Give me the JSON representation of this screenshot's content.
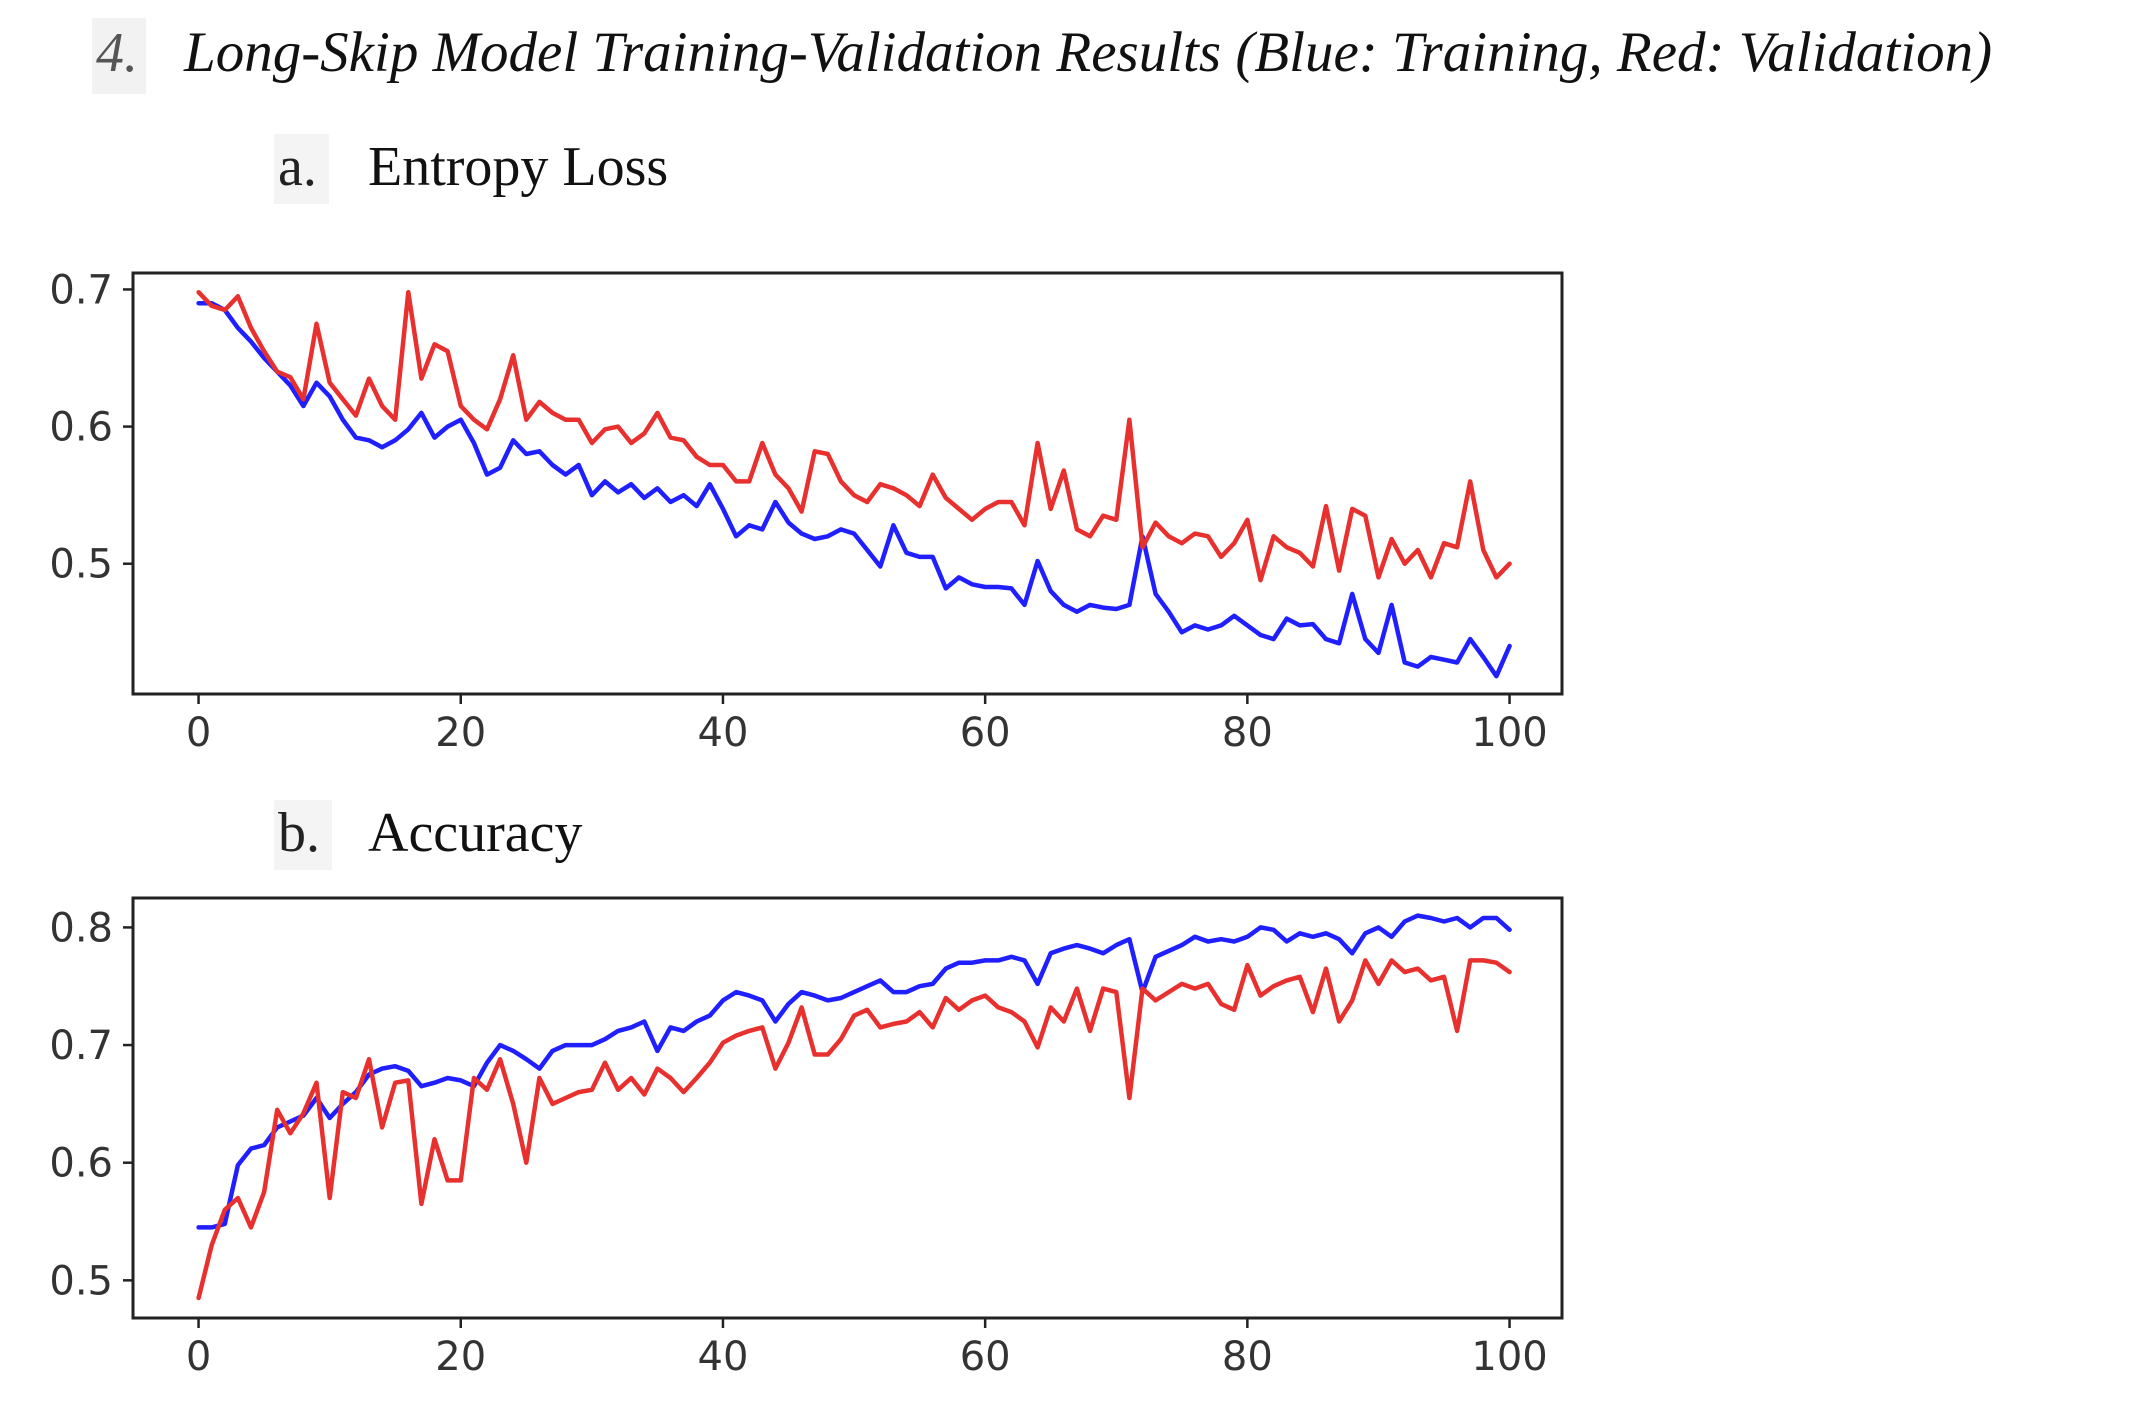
{
  "heading": {
    "number": "4.",
    "title": "Long-Skip Model Training-Validation Results (Blue: Training, Red: Validation)"
  },
  "sections": [
    {
      "letter": "a.",
      "title": "Entropy Loss"
    },
    {
      "letter": "b.",
      "title": "Accuracy"
    }
  ],
  "colors": {
    "training": "#1f1fff",
    "validation": "#e8312f",
    "axes": "#222222"
  },
  "chart_data": [
    {
      "type": "line",
      "title": "",
      "xlabel": "",
      "ylabel": "",
      "xlim": [
        -5,
        104
      ],
      "ylim": [
        0.405,
        0.712
      ],
      "xticks": [
        0,
        20,
        40,
        60,
        80,
        100
      ],
      "yticks": [
        0.5,
        0.6,
        0.7
      ],
      "xtick_labels": [
        "0",
        "20",
        "40",
        "60",
        "80",
        "100"
      ],
      "ytick_labels": [
        "0.5",
        "0.6",
        "0.7"
      ],
      "grid": false,
      "series": [
        {
          "color": "#1f1fff",
          "values": [
            0.69,
            0.69,
            0.685,
            0.672,
            0.662,
            0.65,
            0.64,
            0.63,
            0.615,
            0.632,
            0.622,
            0.605,
            0.592,
            0.59,
            0.585,
            0.59,
            0.598,
            0.61,
            0.592,
            0.6,
            0.605,
            0.588,
            0.565,
            0.57,
            0.59,
            0.58,
            0.582,
            0.572,
            0.565,
            0.572,
            0.55,
            0.56,
            0.552,
            0.558,
            0.548,
            0.555,
            0.545,
            0.55,
            0.542,
            0.558,
            0.54,
            0.52,
            0.528,
            0.525,
            0.545,
            0.53,
            0.522,
            0.518,
            0.52,
            0.525,
            0.522,
            0.51,
            0.498,
            0.528,
            0.508,
            0.505,
            0.505,
            0.482,
            0.49,
            0.485,
            0.483,
            0.483,
            0.482,
            0.47,
            0.502,
            0.48,
            0.47,
            0.465,
            0.47,
            0.468,
            0.467,
            0.47,
            0.52,
            0.478,
            0.465,
            0.45,
            0.455,
            0.452,
            0.455,
            0.462,
            0.455,
            0.448,
            0.445,
            0.46,
            0.455,
            0.456,
            0.445,
            0.442,
            0.478,
            0.445,
            0.435,
            0.47,
            0.428,
            0.425,
            0.432,
            0.43,
            0.428,
            0.445,
            0.432,
            0.418,
            0.44
          ]
        },
        {
          "color": "#e8312f",
          "values": [
            0.698,
            0.688,
            0.685,
            0.695,
            0.672,
            0.655,
            0.64,
            0.636,
            0.62,
            0.675,
            0.632,
            0.62,
            0.608,
            0.635,
            0.615,
            0.605,
            0.698,
            0.635,
            0.66,
            0.655,
            0.615,
            0.605,
            0.598,
            0.62,
            0.652,
            0.605,
            0.618,
            0.61,
            0.605,
            0.605,
            0.588,
            0.598,
            0.6,
            0.588,
            0.595,
            0.61,
            0.592,
            0.59,
            0.578,
            0.572,
            0.572,
            0.56,
            0.56,
            0.588,
            0.565,
            0.555,
            0.538,
            0.582,
            0.58,
            0.56,
            0.55,
            0.545,
            0.558,
            0.555,
            0.55,
            0.542,
            0.565,
            0.548,
            0.54,
            0.532,
            0.54,
            0.545,
            0.545,
            0.528,
            0.588,
            0.54,
            0.568,
            0.525,
            0.52,
            0.535,
            0.532,
            0.605,
            0.512,
            0.53,
            0.52,
            0.515,
            0.522,
            0.52,
            0.505,
            0.515,
            0.532,
            0.488,
            0.52,
            0.512,
            0.508,
            0.498,
            0.542,
            0.495,
            0.54,
            0.535,
            0.49,
            0.518,
            0.5,
            0.51,
            0.49,
            0.515,
            0.512,
            0.56,
            0.51,
            0.49,
            0.5
          ]
        }
      ]
    },
    {
      "type": "line",
      "title": "",
      "xlabel": "",
      "ylabel": "",
      "xlim": [
        -5,
        104
      ],
      "ylim": [
        0.468,
        0.825
      ],
      "xticks": [
        0,
        20,
        40,
        60,
        80,
        100
      ],
      "yticks": [
        0.5,
        0.6,
        0.7,
        0.8
      ],
      "xtick_labels": [
        "0",
        "20",
        "40",
        "60",
        "80",
        "100"
      ],
      "ytick_labels": [
        "0.5",
        "0.6",
        "0.7",
        "0.8"
      ],
      "grid": false,
      "series": [
        {
          "color": "#1f1fff",
          "values": [
            0.545,
            0.545,
            0.548,
            0.598,
            0.612,
            0.615,
            0.63,
            0.635,
            0.64,
            0.655,
            0.638,
            0.65,
            0.66,
            0.675,
            0.68,
            0.682,
            0.678,
            0.665,
            0.668,
            0.672,
            0.67,
            0.665,
            0.685,
            0.7,
            0.695,
            0.688,
            0.68,
            0.695,
            0.7,
            0.7,
            0.7,
            0.705,
            0.712,
            0.715,
            0.72,
            0.695,
            0.715,
            0.712,
            0.72,
            0.725,
            0.738,
            0.745,
            0.742,
            0.738,
            0.72,
            0.735,
            0.745,
            0.742,
            0.738,
            0.74,
            0.745,
            0.75,
            0.755,
            0.745,
            0.745,
            0.75,
            0.752,
            0.765,
            0.77,
            0.77,
            0.772,
            0.772,
            0.775,
            0.772,
            0.752,
            0.778,
            0.782,
            0.785,
            0.782,
            0.778,
            0.785,
            0.79,
            0.745,
            0.775,
            0.78,
            0.785,
            0.792,
            0.788,
            0.79,
            0.788,
            0.792,
            0.8,
            0.798,
            0.788,
            0.795,
            0.792,
            0.795,
            0.79,
            0.778,
            0.795,
            0.8,
            0.792,
            0.805,
            0.81,
            0.808,
            0.805,
            0.808,
            0.8,
            0.808,
            0.808,
            0.798
          ]
        },
        {
          "color": "#e8312f",
          "values": [
            0.485,
            0.53,
            0.56,
            0.57,
            0.545,
            0.575,
            0.645,
            0.625,
            0.642,
            0.668,
            0.57,
            0.66,
            0.655,
            0.688,
            0.63,
            0.668,
            0.67,
            0.565,
            0.62,
            0.585,
            0.585,
            0.672,
            0.662,
            0.688,
            0.65,
            0.6,
            0.672,
            0.65,
            0.655,
            0.66,
            0.662,
            0.685,
            0.662,
            0.672,
            0.658,
            0.68,
            0.672,
            0.66,
            0.672,
            0.685,
            0.702,
            0.708,
            0.712,
            0.715,
            0.68,
            0.702,
            0.732,
            0.692,
            0.692,
            0.705,
            0.725,
            0.73,
            0.715,
            0.718,
            0.72,
            0.728,
            0.715,
            0.74,
            0.73,
            0.738,
            0.742,
            0.732,
            0.728,
            0.72,
            0.698,
            0.732,
            0.72,
            0.748,
            0.712,
            0.748,
            0.745,
            0.655,
            0.748,
            0.738,
            0.745,
            0.752,
            0.748,
            0.752,
            0.735,
            0.73,
            0.768,
            0.742,
            0.75,
            0.755,
            0.758,
            0.728,
            0.765,
            0.72,
            0.738,
            0.772,
            0.752,
            0.772,
            0.762,
            0.765,
            0.755,
            0.758,
            0.712,
            0.772,
            0.772,
            0.77,
            0.762
          ]
        }
      ]
    }
  ]
}
